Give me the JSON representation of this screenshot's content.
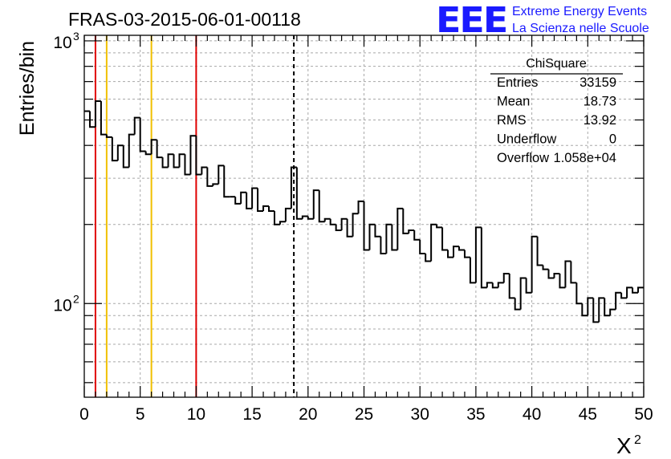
{
  "chart_data": {
    "type": "histogram",
    "title": "FRAS-03-2015-06-01-00118",
    "xlabel": "X",
    "xlabel_superscript": "2",
    "ylabel": "Entries/bin",
    "xlim": [
      0,
      50
    ],
    "ylim": [
      44,
      1050
    ],
    "yscale": "log",
    "grid": true,
    "x_ticks": [
      "0",
      "5",
      "10",
      "15",
      "20",
      "25",
      "30",
      "35",
      "40",
      "45",
      "50"
    ],
    "y_ticks": [
      {
        "base": "10",
        "exp": "2",
        "value": 100
      },
      {
        "base": "10",
        "exp": "3",
        "value": 1000
      }
    ],
    "bin_width": 0.5,
    "x": [
      0,
      0.5,
      1,
      1.5,
      2,
      2.5,
      3,
      3.5,
      4,
      4.5,
      5,
      5.5,
      6,
      6.5,
      7,
      7.5,
      8,
      8.5,
      9,
      9.5,
      10,
      10.5,
      11,
      11.5,
      12,
      12.5,
      13,
      13.5,
      14,
      14.5,
      15,
      15.5,
      16,
      16.5,
      17,
      17.5,
      18,
      18.5,
      19,
      19.5,
      20,
      20.5,
      21,
      21.5,
      22,
      22.5,
      23,
      23.5,
      24,
      24.5,
      25,
      25.5,
      26,
      26.5,
      27,
      27.5,
      28,
      28.5,
      29,
      29.5,
      30,
      30.5,
      31,
      31.5,
      32,
      32.5,
      33,
      33.5,
      34,
      34.5,
      35,
      35.5,
      36,
      36.5,
      37,
      37.5,
      38,
      38.5,
      39,
      39.5,
      40,
      40.5,
      41,
      41.5,
      42,
      42.5,
      43,
      43.5,
      44,
      44.5,
      45,
      45.5,
      46,
      46.5,
      47,
      47.5,
      48,
      48.5,
      49,
      49.5
    ],
    "values": [
      540,
      470,
      590,
      440,
      430,
      350,
      400,
      330,
      440,
      510,
      380,
      370,
      420,
      360,
      330,
      370,
      330,
      370,
      310,
      435,
      310,
      330,
      280,
      285,
      335,
      255,
      255,
      240,
      265,
      230,
      275,
      225,
      235,
      225,
      200,
      205,
      230,
      330,
      210,
      215,
      210,
      270,
      205,
      210,
      200,
      190,
      210,
      180,
      220,
      245,
      160,
      200,
      180,
      155,
      200,
      160,
      230,
      185,
      190,
      175,
      155,
      145,
      200,
      195,
      160,
      150,
      165,
      160,
      150,
      120,
      195,
      115,
      120,
      115,
      120,
      130,
      105,
      95,
      125,
      110,
      180,
      140,
      135,
      125,
      130,
      115,
      145,
      120,
      100,
      90,
      105,
      85,
      105,
      90,
      95,
      110,
      105,
      115,
      110,
      115
    ],
    "vertical_lines": [
      {
        "x": 1,
        "color": "#e00000",
        "style": "solid"
      },
      {
        "x": 2,
        "color": "#f0c000",
        "style": "solid"
      },
      {
        "x": 6,
        "color": "#f0c000",
        "style": "solid"
      },
      {
        "x": 10,
        "color": "#e00000",
        "style": "solid"
      },
      {
        "x": 18.73,
        "color": "#000000",
        "style": "dashed"
      }
    ],
    "stats": {
      "title": "ChiSquare",
      "rows": [
        {
          "label": "Entries",
          "value": "33159"
        },
        {
          "label": "Mean",
          "value": "18.73"
        },
        {
          "label": "RMS",
          "value": "13.92"
        },
        {
          "label": "Underflow",
          "value": "0"
        },
        {
          "label": "Overflow",
          "value": "1.058e+04"
        }
      ]
    }
  },
  "logo": {
    "mark": "EEE",
    "line1": "Extreme Energy Events",
    "line2": "La Scienza nelle Scuole",
    "color": "#1a1aff"
  }
}
